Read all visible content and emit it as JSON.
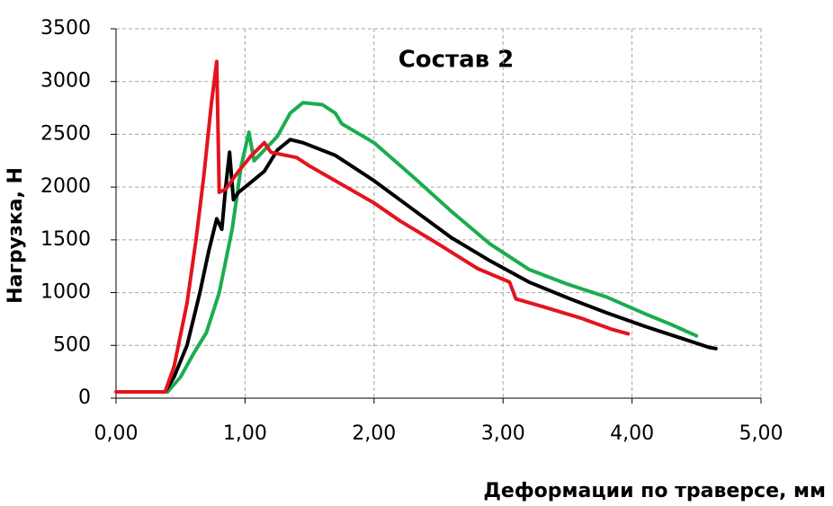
{
  "chart_data": {
    "type": "line",
    "title": "Состав 2",
    "ylabel": "Нагрузка, Н",
    "xlabel": "Деформации по траверсе, мм",
    "xlim": [
      0,
      5
    ],
    "xticks": [
      {
        "value": 0,
        "label": "0,00"
      },
      {
        "value": 1,
        "label": "1,00"
      },
      {
        "value": 2,
        "label": "2,00"
      },
      {
        "value": 3,
        "label": "3,00"
      },
      {
        "value": 4,
        "label": "4,00"
      },
      {
        "value": 5,
        "label": "5,00"
      }
    ],
    "ylim": [
      0,
      3500
    ],
    "yticks": [
      0,
      500,
      1000,
      1500,
      2000,
      2500,
      3000,
      3500
    ],
    "grid": true,
    "series": [
      {
        "color": "#1aad4e",
        "x": [
          0.4,
          0.5,
          0.6,
          0.7,
          0.8,
          0.9,
          0.97,
          1.03,
          1.07,
          1.15,
          1.25,
          1.35,
          1.45,
          1.6,
          1.7,
          1.75,
          2.0,
          2.3,
          2.6,
          2.9,
          3.2,
          3.5,
          3.8,
          4.1,
          4.3,
          4.5
        ],
        "values": [
          60,
          200,
          420,
          620,
          1000,
          1600,
          2200,
          2520,
          2250,
          2350,
          2480,
          2700,
          2800,
          2780,
          2700,
          2600,
          2420,
          2100,
          1770,
          1460,
          1220,
          1080,
          960,
          800,
          700,
          590
        ]
      },
      {
        "color": "#000000",
        "x": [
          0.38,
          0.45,
          0.55,
          0.65,
          0.72,
          0.78,
          0.82,
          0.85,
          0.88,
          0.91,
          0.95,
          1.05,
          1.15,
          1.25,
          1.35,
          1.45,
          1.7,
          2.0,
          2.3,
          2.6,
          2.9,
          3.2,
          3.5,
          3.8,
          4.1,
          4.4,
          4.6,
          4.65
        ],
        "values": [
          60,
          200,
          500,
          1000,
          1400,
          1700,
          1600,
          2000,
          2330,
          1880,
          1950,
          2050,
          2150,
          2350,
          2450,
          2420,
          2300,
          2060,
          1790,
          1520,
          1300,
          1100,
          950,
          810,
          680,
          560,
          480,
          470
        ]
      },
      {
        "color": "#e3141e",
        "x": [
          0,
          0.38,
          0.45,
          0.55,
          0.62,
          0.68,
          0.74,
          0.78,
          0.8,
          0.85,
          0.95,
          1.05,
          1.15,
          1.2,
          1.4,
          1.5,
          1.7,
          2.0,
          2.2,
          2.5,
          2.8,
          3.05,
          3.1,
          3.3,
          3.6,
          3.85,
          3.97
        ],
        "values": [
          60,
          60,
          300,
          900,
          1500,
          2100,
          2800,
          3190,
          1950,
          1980,
          2150,
          2300,
          2420,
          2330,
          2280,
          2200,
          2060,
          1850,
          1680,
          1460,
          1230,
          1100,
          940,
          870,
          760,
          650,
          610
        ]
      }
    ]
  }
}
